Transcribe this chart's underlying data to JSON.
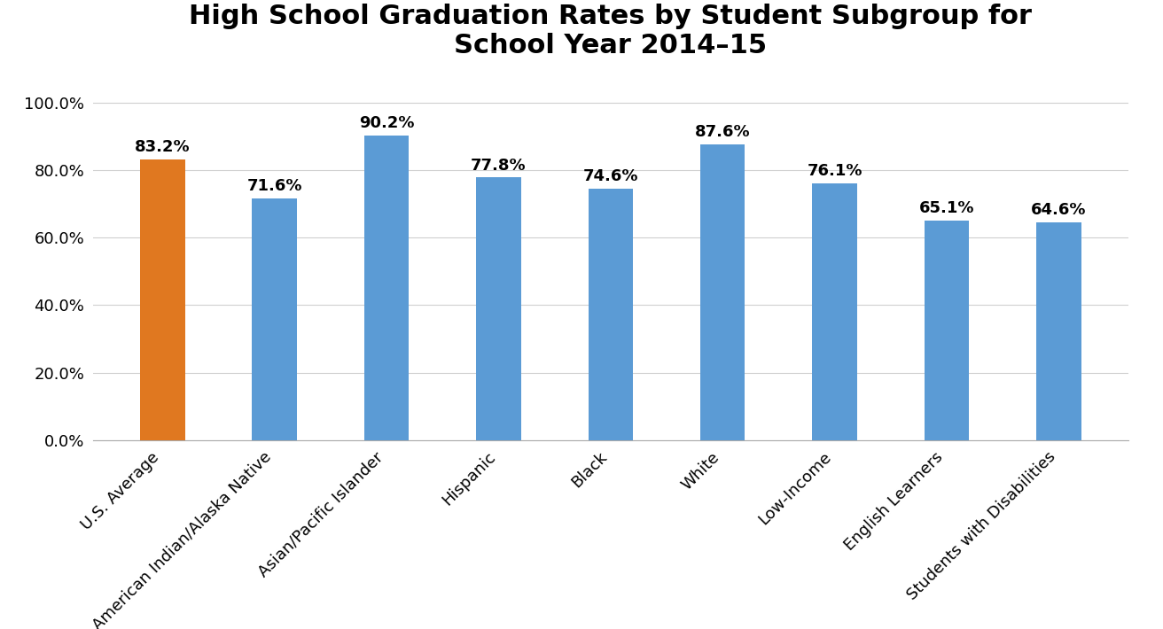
{
  "title": "High School Graduation Rates by Student Subgroup for\nSchool Year 2014–15",
  "categories": [
    "U.S. Average",
    "American Indian/Alaska Native",
    "Asian/Pacific Islander",
    "Hispanic",
    "Black",
    "White",
    "Low-Income",
    "English Learners",
    "Students with Disabilities"
  ],
  "values": [
    83.2,
    71.6,
    90.2,
    77.8,
    74.6,
    87.6,
    76.1,
    65.1,
    64.6
  ],
  "bar_colors": [
    "#E07820",
    "#5B9BD5",
    "#5B9BD5",
    "#5B9BD5",
    "#5B9BD5",
    "#5B9BD5",
    "#5B9BD5",
    "#5B9BD5",
    "#5B9BD5"
  ],
  "ylim": [
    0,
    108
  ],
  "yticks": [
    0,
    20,
    40,
    60,
    80,
    100
  ],
  "ytick_labels": [
    "0.0%",
    "20.0%",
    "40.0%",
    "60.0%",
    "80.0%",
    "100.0%"
  ],
  "title_fontsize": 22,
  "label_fontsize": 13,
  "tick_fontsize": 13,
  "value_fontsize": 13,
  "background_color": "#FFFFFF",
  "grid_color": "#D0D0D0"
}
